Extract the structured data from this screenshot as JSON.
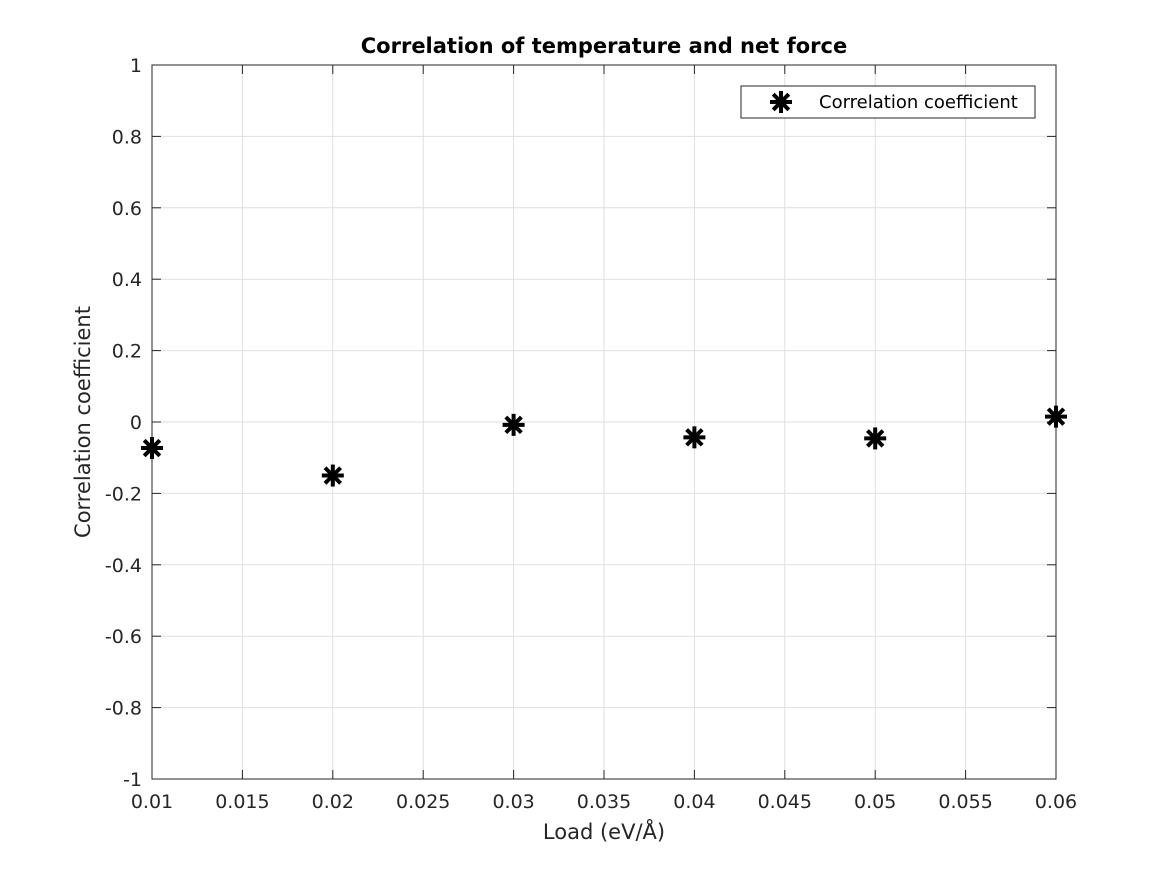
{
  "chart_data": {
    "type": "scatter",
    "title": "Correlation of temperature and net force",
    "xlabel": "Load (eV/Å)",
    "ylabel": "Correlation coefficient",
    "xlim": [
      0.01,
      0.06
    ],
    "ylim": [
      -1,
      1
    ],
    "xticks": [
      "0.01",
      "0.015",
      "0.02",
      "0.025",
      "0.03",
      "0.035",
      "0.04",
      "0.045",
      "0.05",
      "0.055",
      "0.06"
    ],
    "yticks": [
      "-1",
      "-0.8",
      "-0.6",
      "-0.4",
      "-0.2",
      "0",
      "0.2",
      "0.4",
      "0.6",
      "0.8",
      "1"
    ],
    "grid": true,
    "legend_position": "top-right",
    "series": [
      {
        "name": "Correlation coefficient",
        "marker": "asterisk",
        "color": "#000000",
        "x": [
          0.01,
          0.02,
          0.03,
          0.04,
          0.05,
          0.06
        ],
        "y": [
          -0.073,
          -0.15,
          -0.008,
          -0.043,
          -0.046,
          0.015
        ]
      }
    ]
  }
}
